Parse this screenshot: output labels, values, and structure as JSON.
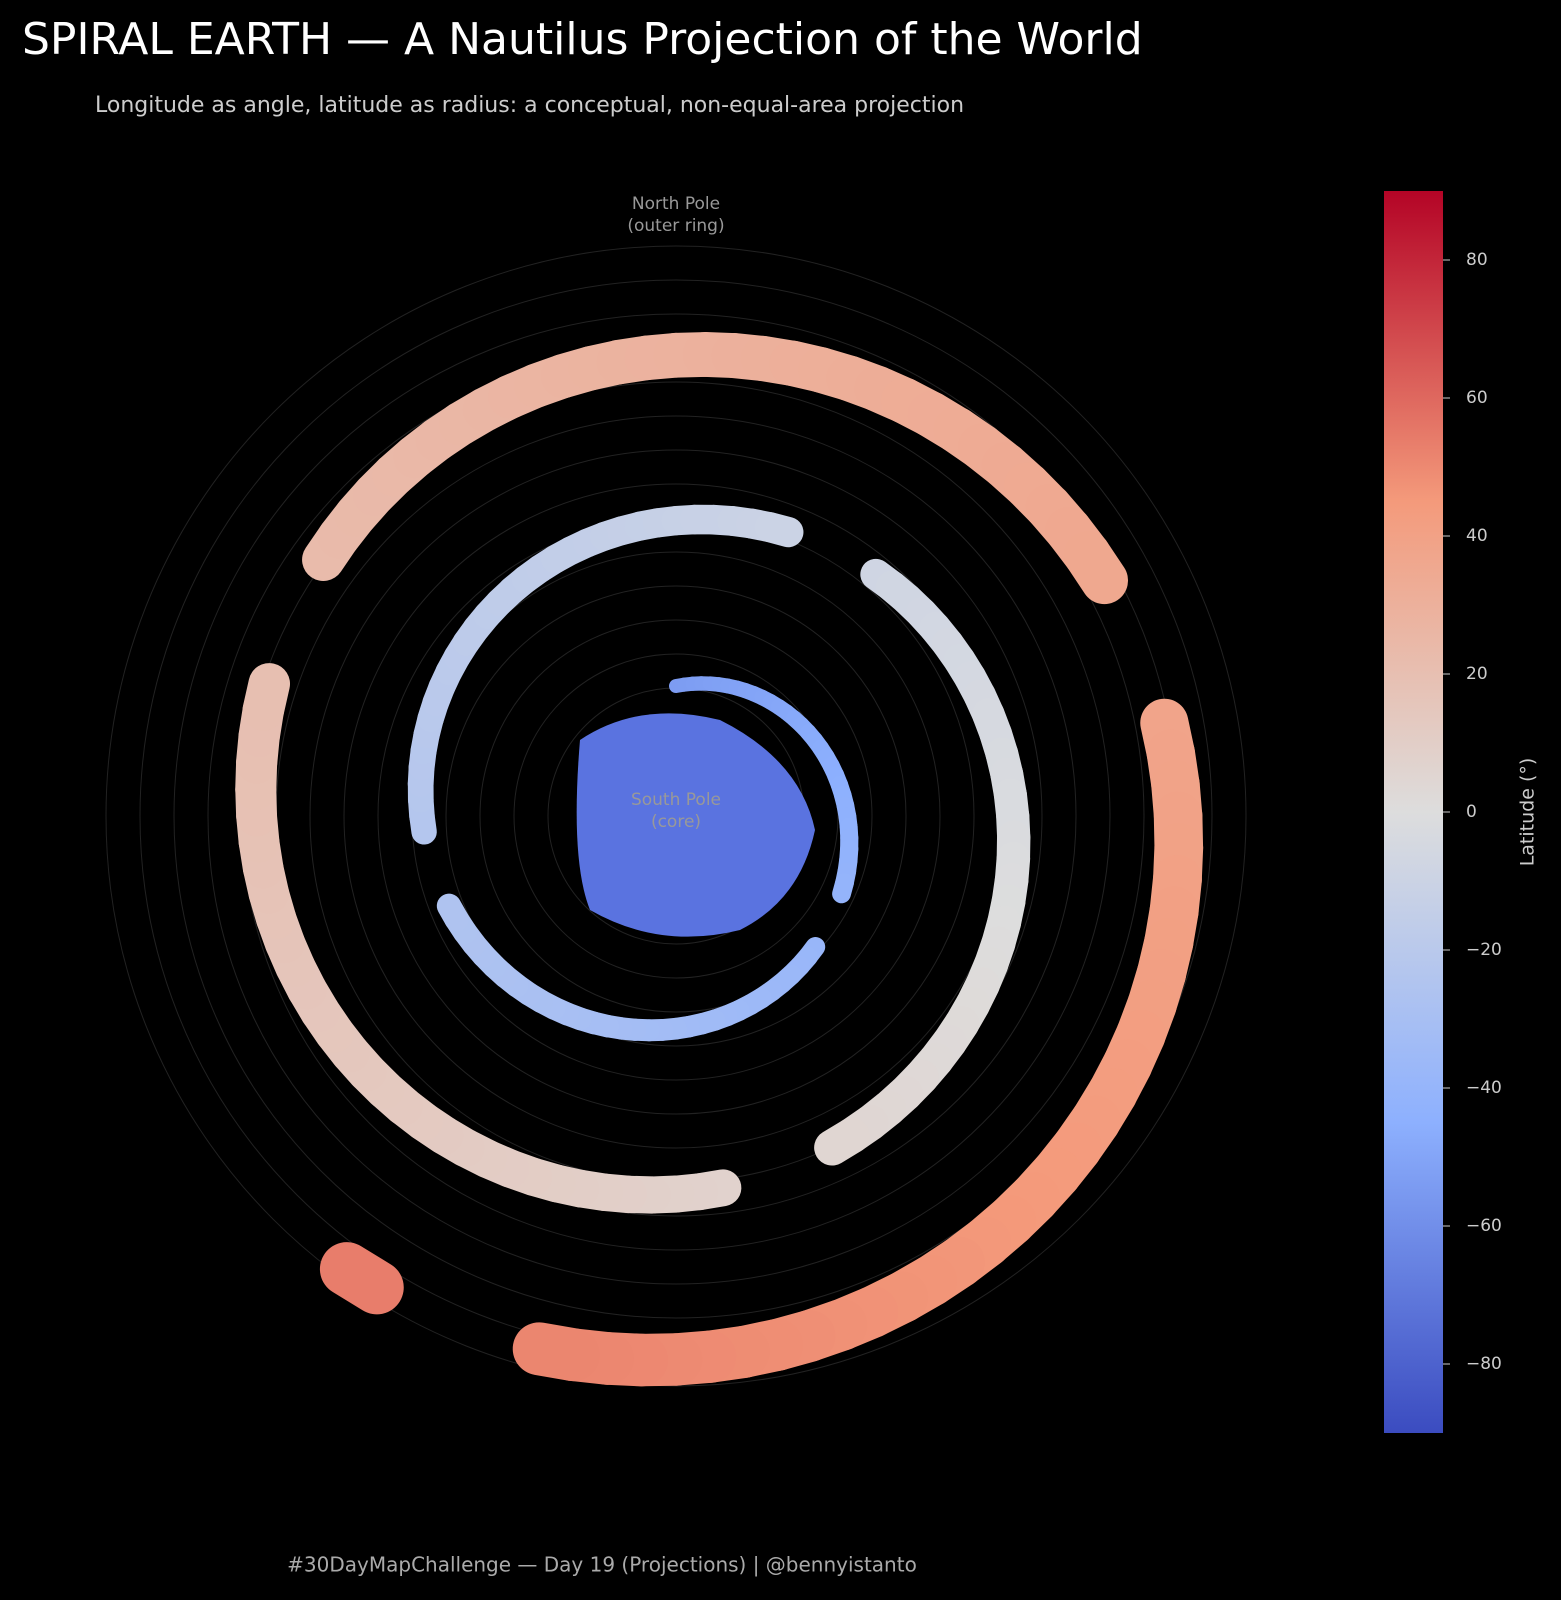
{
  "header": {
    "title": "SPIRAL EARTH — A Nautilus Projection of the World",
    "subtitle": "Longitude as angle, latitude as radius: a conceptual, non-equal-area projection"
  },
  "annotations": {
    "north": [
      "North Pole",
      "(outer ring)"
    ],
    "south": [
      "South Pole",
      "(core)"
    ]
  },
  "colorbar": {
    "label": "Latitude (°)",
    "lim": [
      -90,
      90
    ],
    "ticks": [
      {
        "value": -80,
        "label": "−80"
      },
      {
        "value": -60,
        "label": "−60"
      },
      {
        "value": -40,
        "label": "−40"
      },
      {
        "value": -20,
        "label": "−20"
      },
      0,
      20,
      40,
      60,
      80
    ]
  },
  "footer": "#30DayMapChallenge — Day 19 (Projections) | @bennyistanto"
}
